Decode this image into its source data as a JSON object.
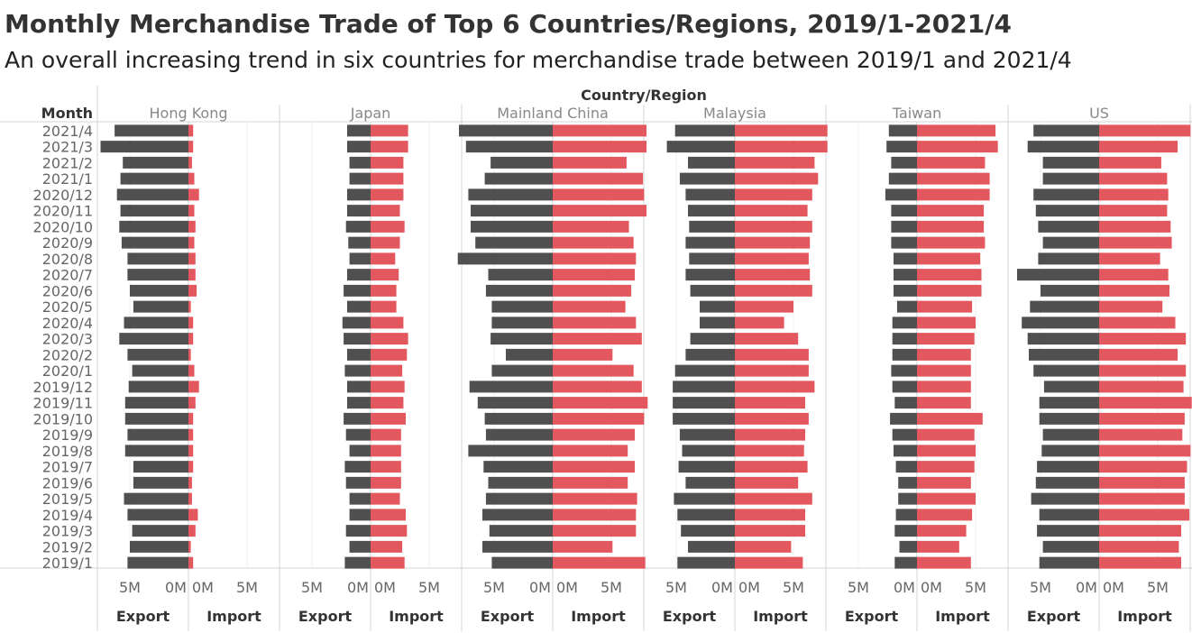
{
  "title": "Monthly Merchandise Trade of Top 6 Countries/Regions, 2019/1-2021/4",
  "subtitle": "An overall increasing trend in six countries for merchandise trade between 2019/1 and 2021/4",
  "colors": {
    "export": "#505050",
    "import": "#e3575e",
    "grid": "#d4d4d4",
    "label": "#666666",
    "header": "#333333"
  },
  "chart_data": {
    "type": "bar",
    "orientation": "horizontal",
    "layout": "back-to-back small multiples",
    "column_header": "Country/Region",
    "row_header": "Month",
    "months": [
      "2021/4",
      "2021/3",
      "2021/2",
      "2021/1",
      "2020/12",
      "2020/11",
      "2020/10",
      "2020/9",
      "2020/8",
      "2020/7",
      "2020/6",
      "2020/5",
      "2020/4",
      "2020/3",
      "2020/2",
      "2020/1",
      "2019/12",
      "2019/11",
      "2019/10",
      "2019/9",
      "2019/8",
      "2019/7",
      "2019/6",
      "2019/5",
      "2019/4",
      "2019/3",
      "2019/2",
      "2019/1"
    ],
    "measures": [
      "Export",
      "Import"
    ],
    "axis_ticks": [
      "5M",
      "0M",
      "0M",
      "5M"
    ],
    "export_range_millions": [
      0,
      8.5
    ],
    "import_range_millions": [
      0,
      8.5
    ],
    "units": "millions",
    "panels": [
      {
        "region": "Hong Kong",
        "export": [
          6.3,
          7.5,
          5.6,
          5.8,
          6.1,
          5.8,
          5.9,
          5.7,
          5.2,
          5.2,
          5.0,
          4.7,
          5.5,
          5.9,
          5.2,
          4.8,
          5.1,
          5.4,
          5.4,
          5.2,
          5.4,
          4.7,
          4.7,
          5.5,
          5.2,
          4.8,
          5.0,
          5.2
        ],
        "import": [
          0.4,
          0.4,
          0.3,
          0.5,
          0.9,
          0.5,
          0.6,
          0.5,
          0.6,
          0.6,
          0.7,
          0.2,
          0.4,
          0.4,
          0.2,
          0.5,
          0.9,
          0.6,
          0.4,
          0.4,
          0.4,
          0.4,
          0.3,
          0.3,
          0.8,
          0.6,
          0.2,
          0.4
        ]
      },
      {
        "region": "Japan",
        "export": [
          2.0,
          2.0,
          1.8,
          1.8,
          2.0,
          2.0,
          2.1,
          1.9,
          1.8,
          2.0,
          2.3,
          2.0,
          2.4,
          2.3,
          2.0,
          2.2,
          2.0,
          2.0,
          2.3,
          2.1,
          1.8,
          2.2,
          2.1,
          1.8,
          1.8,
          2.1,
          1.8,
          2.2
        ],
        "import": [
          3.2,
          3.2,
          2.8,
          2.8,
          2.8,
          2.5,
          2.9,
          2.5,
          2.1,
          2.4,
          2.2,
          2.2,
          2.8,
          3.2,
          3.1,
          2.7,
          2.9,
          2.8,
          3.0,
          2.6,
          2.6,
          2.6,
          2.6,
          2.5,
          3.0,
          3.1,
          2.7,
          2.9
        ]
      },
      {
        "region": "Mainland China",
        "export": [
          8.0,
          7.4,
          5.3,
          5.8,
          7.2,
          7.0,
          7.0,
          6.6,
          8.1,
          5.5,
          5.7,
          5.2,
          5.2,
          5.3,
          4.0,
          5.2,
          7.1,
          6.4,
          5.8,
          5.7,
          7.2,
          5.9,
          5.5,
          5.7,
          6.0,
          5.4,
          6.0,
          5.2
        ],
        "import": [
          8.0,
          8.0,
          6.3,
          7.7,
          7.8,
          8.0,
          6.5,
          6.9,
          7.1,
          7.0,
          6.7,
          6.2,
          7.1,
          7.6,
          5.1,
          6.9,
          7.6,
          8.1,
          7.8,
          7.0,
          6.4,
          7.0,
          6.4,
          7.2,
          7.1,
          7.1,
          5.1,
          7.9
        ]
      },
      {
        "region": "Malaysia",
        "export": [
          5.1,
          5.8,
          4.0,
          4.7,
          4.2,
          4.0,
          3.9,
          4.2,
          3.9,
          4.2,
          3.8,
          3.0,
          3.0,
          3.8,
          4.2,
          5.1,
          5.3,
          5.3,
          5.3,
          4.7,
          4.5,
          4.8,
          4.2,
          5.2,
          4.9,
          4.6,
          4.0,
          4.9
        ],
        "import": [
          7.9,
          7.9,
          6.8,
          7.1,
          6.6,
          6.2,
          6.6,
          6.4,
          6.3,
          6.4,
          6.6,
          5.0,
          4.2,
          5.4,
          6.3,
          6.3,
          6.8,
          6.0,
          6.3,
          6.0,
          5.9,
          6.2,
          5.4,
          6.6,
          6.0,
          6.0,
          4.8,
          5.8
        ]
      },
      {
        "region": "Taiwan",
        "export": [
          2.4,
          2.6,
          2.2,
          2.4,
          2.7,
          2.2,
          2.2,
          2.2,
          2.0,
          2.0,
          2.0,
          1.7,
          2.1,
          2.1,
          2.1,
          2.2,
          2.1,
          1.9,
          2.3,
          2.1,
          2.0,
          1.8,
          1.6,
          1.6,
          1.8,
          1.9,
          1.5,
          1.9
        ],
        "import": [
          6.7,
          6.9,
          5.8,
          6.2,
          6.2,
          5.7,
          5.7,
          5.8,
          5.4,
          5.5,
          5.5,
          4.7,
          5.0,
          4.9,
          4.6,
          4.6,
          4.6,
          4.6,
          5.6,
          4.9,
          5.0,
          4.9,
          4.6,
          5.0,
          4.7,
          4.2,
          3.6,
          4.6
        ]
      },
      {
        "region": "US",
        "export": [
          5.6,
          6.1,
          4.8,
          4.8,
          5.6,
          5.4,
          5.2,
          4.8,
          5.2,
          7.0,
          5.0,
          5.9,
          6.6,
          6.1,
          6.0,
          5.6,
          4.7,
          5.1,
          5.1,
          4.8,
          4.9,
          5.3,
          5.4,
          5.8,
          5.1,
          5.3,
          4.8,
          5.1
        ],
        "import": [
          7.8,
          6.7,
          5.3,
          5.8,
          5.9,
          5.8,
          6.1,
          6.2,
          5.2,
          5.9,
          6.0,
          5.4,
          6.5,
          7.4,
          6.7,
          7.4,
          7.2,
          7.9,
          7.3,
          7.1,
          7.8,
          7.5,
          7.3,
          7.3,
          7.7,
          7.0,
          6.8,
          7.0
        ]
      }
    ]
  }
}
